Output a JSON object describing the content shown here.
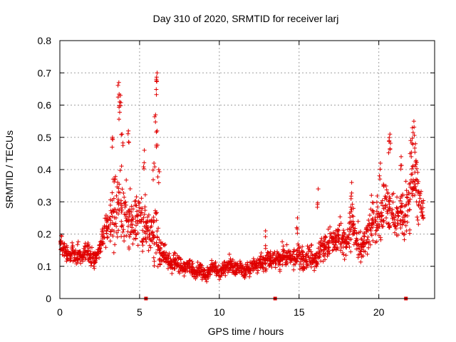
{
  "chart_data": {
    "type": "scatter",
    "title": "Day 310 of 2020, SRMTID for receiver larj",
    "xlabel": "GPS time / hours",
    "ylabel": "SRMTID / TECUs",
    "xlim": [
      0,
      23.5
    ],
    "ylim": [
      0,
      0.8
    ],
    "x_ticks": [
      0,
      5,
      10,
      15,
      20
    ],
    "x_tick_labels": [
      "0",
      "5",
      "10",
      "15",
      "20"
    ],
    "y_ticks": [
      0,
      0.1,
      0.2,
      0.3,
      0.4,
      0.5,
      0.6,
      0.7,
      0.8
    ],
    "y_tick_labels": [
      "0",
      "0.1",
      "0.2",
      "0.3",
      "0.4",
      "0.5",
      "0.6",
      "0.7",
      "0.8"
    ],
    "grid": true,
    "marker": "plus",
    "series": [
      {
        "name": "SRMTID",
        "color": "#e00000",
        "x": [
          0.0,
          0.2,
          0.4,
          0.6,
          0.8,
          1.0,
          1.2,
          1.4,
          1.6,
          1.8,
          2.0,
          2.2,
          2.4,
          2.6,
          2.8,
          3.0,
          3.2,
          3.4,
          3.6,
          3.8,
          4.0,
          4.2,
          4.4,
          4.6,
          4.8,
          5.0,
          5.2,
          5.4,
          5.6,
          5.8,
          6.0,
          6.2,
          6.4,
          6.6,
          6.8,
          7.0,
          7.2,
          7.4,
          7.6,
          7.8,
          8.0,
          8.2,
          8.4,
          8.6,
          8.8,
          9.0,
          9.2,
          9.4,
          9.6,
          9.8,
          10.0,
          10.2,
          10.4,
          10.6,
          10.8,
          11.0,
          11.2,
          11.4,
          11.6,
          11.8,
          12.0,
          12.2,
          12.4,
          12.6,
          12.8,
          13.0,
          13.2,
          13.4,
          13.6,
          13.8,
          14.0,
          14.2,
          14.4,
          14.6,
          14.8,
          15.0,
          15.2,
          15.4,
          15.6,
          15.8,
          16.0,
          16.2,
          16.4,
          16.6,
          16.8,
          17.0,
          17.2,
          17.4,
          17.6,
          17.8,
          18.0,
          18.2,
          18.4,
          18.6,
          18.8,
          19.0,
          19.2,
          19.4,
          19.6,
          19.8,
          20.0,
          20.2,
          20.4,
          20.6,
          20.8,
          21.0,
          21.2,
          21.4,
          21.6,
          21.8,
          22.0,
          22.2,
          22.4,
          22.6,
          22.8
        ],
        "values": [
          0.17,
          0.16,
          0.14,
          0.13,
          0.15,
          0.12,
          0.14,
          0.13,
          0.15,
          0.14,
          0.13,
          0.12,
          0.14,
          0.18,
          0.2,
          0.25,
          0.24,
          0.28,
          0.27,
          0.3,
          0.26,
          0.24,
          0.25,
          0.22,
          0.24,
          0.27,
          0.23,
          0.22,
          0.2,
          0.19,
          0.22,
          0.15,
          0.14,
          0.13,
          0.12,
          0.11,
          0.12,
          0.11,
          0.1,
          0.09,
          0.11,
          0.1,
          0.09,
          0.08,
          0.09,
          0.08,
          0.07,
          0.09,
          0.1,
          0.09,
          0.08,
          0.09,
          0.1,
          0.11,
          0.1,
          0.09,
          0.1,
          0.09,
          0.08,
          0.09,
          0.1,
          0.11,
          0.1,
          0.12,
          0.11,
          0.13,
          0.12,
          0.12,
          0.13,
          0.12,
          0.14,
          0.13,
          0.12,
          0.13,
          0.12,
          0.14,
          0.13,
          0.12,
          0.13,
          0.14,
          0.12,
          0.14,
          0.15,
          0.16,
          0.17,
          0.18,
          0.17,
          0.18,
          0.19,
          0.17,
          0.16,
          0.22,
          0.24,
          0.18,
          0.16,
          0.15,
          0.19,
          0.2,
          0.24,
          0.26,
          0.24,
          0.28,
          0.3,
          0.26,
          0.28,
          0.24,
          0.26,
          0.27,
          0.25,
          0.3,
          0.32,
          0.38,
          0.34,
          0.3,
          0.25
        ]
      }
    ],
    "spread": [
      0.04,
      0.04,
      0.04,
      0.03,
      0.04,
      0.03,
      0.04,
      0.03,
      0.04,
      0.04,
      0.04,
      0.03,
      0.04,
      0.05,
      0.06,
      0.08,
      0.1,
      0.12,
      0.14,
      0.15,
      0.14,
      0.12,
      0.11,
      0.1,
      0.1,
      0.11,
      0.1,
      0.09,
      0.08,
      0.1,
      0.12,
      0.06,
      0.05,
      0.04,
      0.04,
      0.04,
      0.04,
      0.03,
      0.03,
      0.03,
      0.03,
      0.03,
      0.03,
      0.03,
      0.03,
      0.03,
      0.03,
      0.03,
      0.03,
      0.03,
      0.03,
      0.03,
      0.03,
      0.03,
      0.03,
      0.03,
      0.03,
      0.03,
      0.03,
      0.03,
      0.03,
      0.03,
      0.03,
      0.04,
      0.04,
      0.04,
      0.04,
      0.04,
      0.04,
      0.04,
      0.04,
      0.04,
      0.04,
      0.04,
      0.04,
      0.05,
      0.05,
      0.04,
      0.04,
      0.05,
      0.04,
      0.05,
      0.05,
      0.06,
      0.06,
      0.06,
      0.06,
      0.07,
      0.07,
      0.07,
      0.06,
      0.08,
      0.08,
      0.07,
      0.06,
      0.06,
      0.07,
      0.08,
      0.09,
      0.09,
      0.09,
      0.1,
      0.1,
      0.1,
      0.1,
      0.09,
      0.1,
      0.1,
      0.1,
      0.11,
      0.12,
      0.13,
      0.12,
      0.1,
      0.06
    ],
    "peaks": [
      {
        "x": 3.7,
        "y": 0.67
      },
      {
        "x": 3.8,
        "y": 0.63
      },
      {
        "x": 3.75,
        "y": 0.61
      },
      {
        "x": 3.9,
        "y": 0.51
      },
      {
        "x": 4.3,
        "y": 0.52
      },
      {
        "x": 3.3,
        "y": 0.5
      },
      {
        "x": 5.3,
        "y": 0.46
      },
      {
        "x": 6.1,
        "y": 0.7
      },
      {
        "x": 6.05,
        "y": 0.68
      },
      {
        "x": 6.0,
        "y": 0.57
      },
      {
        "x": 6.1,
        "y": 0.52
      },
      {
        "x": 5.9,
        "y": 0.42
      },
      {
        "x": 6.2,
        "y": 0.4
      },
      {
        "x": 20.7,
        "y": 0.51
      },
      {
        "x": 20.65,
        "y": 0.49
      },
      {
        "x": 22.2,
        "y": 0.55
      },
      {
        "x": 22.1,
        "y": 0.53
      },
      {
        "x": 22.0,
        "y": 0.49
      },
      {
        "x": 22.3,
        "y": 0.48
      },
      {
        "x": 20.1,
        "y": 0.42
      },
      {
        "x": 21.4,
        "y": 0.44
      },
      {
        "x": 18.3,
        "y": 0.36
      },
      {
        "x": 16.2,
        "y": 0.34
      },
      {
        "x": 14.9,
        "y": 0.25
      },
      {
        "x": 12.9,
        "y": 0.21
      }
    ],
    "axis_markers_x": [
      5.4,
      13.5,
      21.7
    ]
  }
}
